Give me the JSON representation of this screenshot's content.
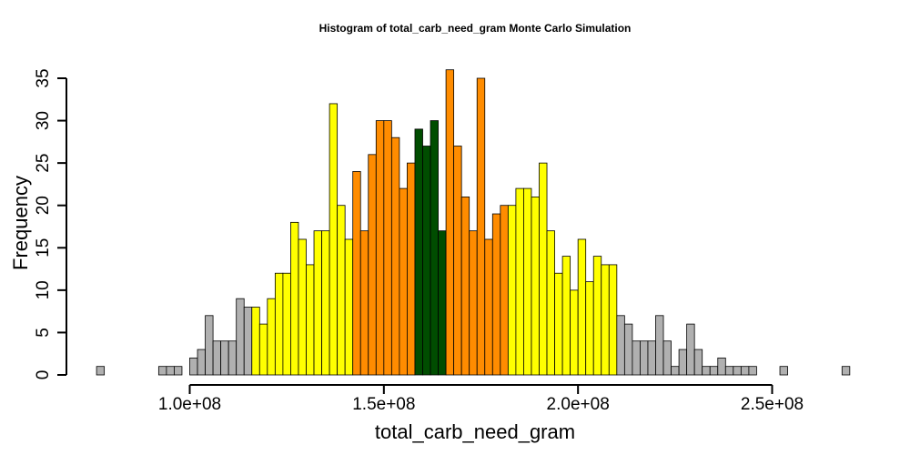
{
  "chart_data": {
    "type": "bar",
    "title": "Histogram of  total_carb_need_gram  Monte Carlo Simulation",
    "xlabel": "total_carb_need_gram",
    "ylabel": "Frequency",
    "x_start": 76000000,
    "bin_width": 2000000,
    "xlim": [
      76000000,
      270000000
    ],
    "ylim": [
      0,
      35
    ],
    "x_ticks": [
      100000000,
      150000000,
      200000000,
      250000000
    ],
    "x_tick_labels": [
      "1.0e+08",
      "1.5e+08",
      "2.0e+08",
      "2.5e+08"
    ],
    "y_ticks": [
      0,
      5,
      10,
      15,
      20,
      25,
      30,
      35
    ],
    "y_tick_labels": [
      "0",
      "5",
      "10",
      "15",
      "20",
      "25",
      "30",
      "35"
    ],
    "colors": {
      "gray": "#b0b0b0",
      "yellow": "#ffff00",
      "orange": "#ff8c00",
      "darkgreen": "#004d00"
    },
    "bins": [
      {
        "count": 1,
        "color": "gray"
      },
      {
        "count": 0,
        "color": "gray"
      },
      {
        "count": 0,
        "color": "gray"
      },
      {
        "count": 0,
        "color": "gray"
      },
      {
        "count": 0,
        "color": "gray"
      },
      {
        "count": 0,
        "color": "gray"
      },
      {
        "count": 0,
        "color": "gray"
      },
      {
        "count": 0,
        "color": "gray"
      },
      {
        "count": 1,
        "color": "gray"
      },
      {
        "count": 1,
        "color": "gray"
      },
      {
        "count": 1,
        "color": "gray"
      },
      {
        "count": 0,
        "color": "gray"
      },
      {
        "count": 2,
        "color": "gray"
      },
      {
        "count": 3,
        "color": "gray"
      },
      {
        "count": 7,
        "color": "gray"
      },
      {
        "count": 4,
        "color": "gray"
      },
      {
        "count": 4,
        "color": "gray"
      },
      {
        "count": 4,
        "color": "gray"
      },
      {
        "count": 9,
        "color": "gray"
      },
      {
        "count": 8,
        "color": "gray"
      },
      {
        "count": 8,
        "color": "yellow"
      },
      {
        "count": 6,
        "color": "yellow"
      },
      {
        "count": 9,
        "color": "yellow"
      },
      {
        "count": 12,
        "color": "yellow"
      },
      {
        "count": 12,
        "color": "yellow"
      },
      {
        "count": 18,
        "color": "yellow"
      },
      {
        "count": 16,
        "color": "yellow"
      },
      {
        "count": 13,
        "color": "yellow"
      },
      {
        "count": 17,
        "color": "yellow"
      },
      {
        "count": 17,
        "color": "yellow"
      },
      {
        "count": 32,
        "color": "yellow"
      },
      {
        "count": 20,
        "color": "yellow"
      },
      {
        "count": 16,
        "color": "yellow"
      },
      {
        "count": 24,
        "color": "orange"
      },
      {
        "count": 17,
        "color": "orange"
      },
      {
        "count": 26,
        "color": "orange"
      },
      {
        "count": 30,
        "color": "orange"
      },
      {
        "count": 30,
        "color": "orange"
      },
      {
        "count": 28,
        "color": "orange"
      },
      {
        "count": 22,
        "color": "orange"
      },
      {
        "count": 25,
        "color": "orange"
      },
      {
        "count": 29,
        "color": "darkgreen"
      },
      {
        "count": 27,
        "color": "darkgreen"
      },
      {
        "count": 30,
        "color": "darkgreen"
      },
      {
        "count": 17,
        "color": "darkgreen"
      },
      {
        "count": 36,
        "color": "orange"
      },
      {
        "count": 27,
        "color": "orange"
      },
      {
        "count": 21,
        "color": "orange"
      },
      {
        "count": 17,
        "color": "orange"
      },
      {
        "count": 35,
        "color": "orange"
      },
      {
        "count": 16,
        "color": "orange"
      },
      {
        "count": 19,
        "color": "orange"
      },
      {
        "count": 20,
        "color": "orange"
      },
      {
        "count": 20,
        "color": "yellow"
      },
      {
        "count": 22,
        "color": "yellow"
      },
      {
        "count": 22,
        "color": "yellow"
      },
      {
        "count": 21,
        "color": "yellow"
      },
      {
        "count": 25,
        "color": "yellow"
      },
      {
        "count": 17,
        "color": "yellow"
      },
      {
        "count": 12,
        "color": "yellow"
      },
      {
        "count": 14,
        "color": "yellow"
      },
      {
        "count": 10,
        "color": "yellow"
      },
      {
        "count": 16,
        "color": "yellow"
      },
      {
        "count": 11,
        "color": "yellow"
      },
      {
        "count": 14,
        "color": "yellow"
      },
      {
        "count": 13,
        "color": "yellow"
      },
      {
        "count": 13,
        "color": "yellow"
      },
      {
        "count": 7,
        "color": "gray"
      },
      {
        "count": 6,
        "color": "gray"
      },
      {
        "count": 4,
        "color": "gray"
      },
      {
        "count": 4,
        "color": "gray"
      },
      {
        "count": 4,
        "color": "gray"
      },
      {
        "count": 7,
        "color": "gray"
      },
      {
        "count": 4,
        "color": "gray"
      },
      {
        "count": 1,
        "color": "gray"
      },
      {
        "count": 3,
        "color": "gray"
      },
      {
        "count": 6,
        "color": "gray"
      },
      {
        "count": 3,
        "color": "gray"
      },
      {
        "count": 1,
        "color": "gray"
      },
      {
        "count": 1,
        "color": "gray"
      },
      {
        "count": 2,
        "color": "gray"
      },
      {
        "count": 1,
        "color": "gray"
      },
      {
        "count": 1,
        "color": "gray"
      },
      {
        "count": 1,
        "color": "gray"
      },
      {
        "count": 1,
        "color": "gray"
      },
      {
        "count": 0,
        "color": "gray"
      },
      {
        "count": 0,
        "color": "gray"
      },
      {
        "count": 0,
        "color": "gray"
      },
      {
        "count": 1,
        "color": "gray"
      },
      {
        "count": 0,
        "color": "gray"
      },
      {
        "count": 0,
        "color": "gray"
      },
      {
        "count": 0,
        "color": "gray"
      },
      {
        "count": 0,
        "color": "gray"
      },
      {
        "count": 0,
        "color": "gray"
      },
      {
        "count": 0,
        "color": "gray"
      },
      {
        "count": 0,
        "color": "gray"
      },
      {
        "count": 1,
        "color": "gray"
      }
    ]
  }
}
